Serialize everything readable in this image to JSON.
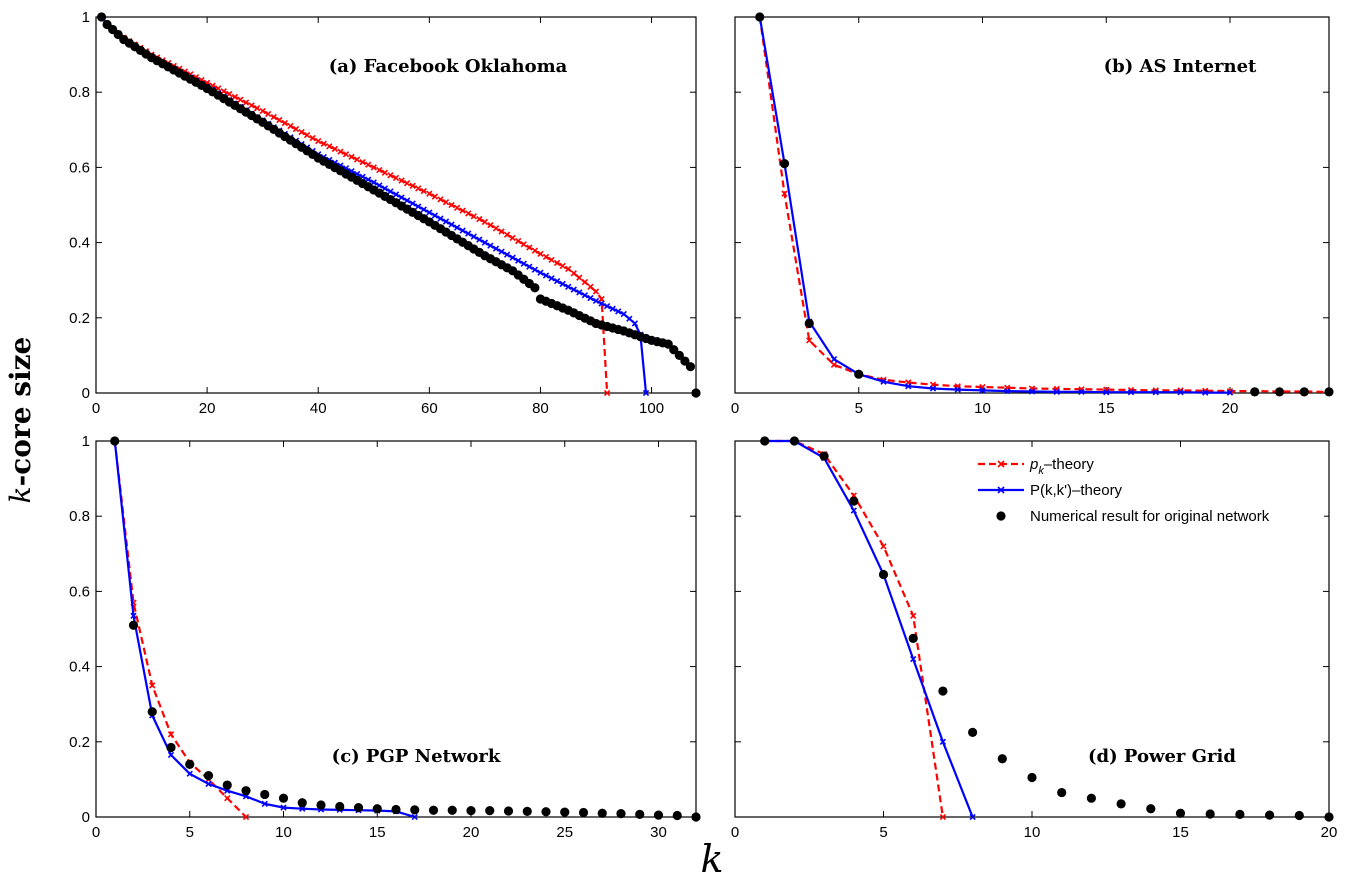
{
  "figure": {
    "ylabel_prefix": "k",
    "ylabel_suffix": "-core size",
    "xlabel": "k"
  },
  "legend": {
    "items": [
      {
        "name": "p_k-theory",
        "label_main": "p",
        "label_sub": "k",
        "label_rest": "–theory",
        "color": "#ff0000",
        "style": "dashed",
        "marker": "x"
      },
      {
        "name": "P(k,k')-theory",
        "label_main": "P(k,k')–theory",
        "color": "#0000ff",
        "style": "solid",
        "marker": "x"
      },
      {
        "name": "Numerical result for original network",
        "label_main": "Numerical result for original network",
        "color": "#000000",
        "style": "none",
        "marker": "dot"
      }
    ]
  },
  "colors": {
    "pk": "#ff0000",
    "pkk": "#0000ff",
    "num": "#000000"
  },
  "chart_data": [
    {
      "type": "line",
      "title": "(a) Facebook Oklahoma",
      "xlim": [
        0,
        108
      ],
      "ylim": [
        0,
        1
      ],
      "xticks": [
        "0",
        "20",
        "40",
        "60",
        "80",
        "100"
      ],
      "xtick_values": [
        0,
        20,
        40,
        60,
        80,
        100
      ],
      "yticks": [
        "0",
        "0.2",
        "0.4",
        "0.6",
        "0.8",
        "1"
      ],
      "ytick_values": [
        0,
        0.2,
        0.4,
        0.6,
        0.8,
        1
      ],
      "series": [
        {
          "name": "p_k-theory",
          "dense": true,
          "knots": [
            [
              1,
              1.0
            ],
            [
              2,
              0.98
            ],
            [
              5,
              0.945
            ],
            [
              10,
              0.9
            ],
            [
              20,
              0.825
            ],
            [
              30,
              0.75
            ],
            [
              40,
              0.67
            ],
            [
              50,
              0.6
            ],
            [
              60,
              0.53
            ],
            [
              70,
              0.455
            ],
            [
              80,
              0.37
            ],
            [
              85,
              0.33
            ],
            [
              88,
              0.295
            ],
            [
              90,
              0.27
            ],
            [
              91,
              0.25
            ],
            [
              92,
              0.0
            ]
          ],
          "x_end": 92
        },
        {
          "name": "P(k,k')-theory",
          "dense": true,
          "knots": [
            [
              1,
              1.0
            ],
            [
              2,
              0.98
            ],
            [
              5,
              0.94
            ],
            [
              10,
              0.895
            ],
            [
              20,
              0.815
            ],
            [
              30,
              0.725
            ],
            [
              40,
              0.635
            ],
            [
              50,
              0.56
            ],
            [
              60,
              0.48
            ],
            [
              70,
              0.4
            ],
            [
              80,
              0.32
            ],
            [
              90,
              0.245
            ],
            [
              95,
              0.21
            ],
            [
              97,
              0.185
            ],
            [
              98,
              0.155
            ],
            [
              99,
              0.0
            ]
          ],
          "x_end": 99
        },
        {
          "name": "Numerical result for original network",
          "dense": true,
          "knots": [
            [
              1,
              1.0
            ],
            [
              2,
              0.98
            ],
            [
              5,
              0.94
            ],
            [
              10,
              0.892
            ],
            [
              20,
              0.81
            ],
            [
              30,
              0.72
            ],
            [
              40,
              0.625
            ],
            [
              50,
              0.54
            ],
            [
              60,
              0.455
            ],
            [
              70,
              0.365
            ],
            [
              75,
              0.325
            ],
            [
              79,
              0.28
            ],
            [
              80,
              0.25
            ],
            [
              85,
              0.22
            ],
            [
              90,
              0.185
            ],
            [
              95,
              0.165
            ],
            [
              100,
              0.14
            ],
            [
              103,
              0.13
            ],
            [
              105,
              0.1
            ],
            [
              107,
              0.07
            ],
            [
              108,
              0.0
            ]
          ],
          "x_end": 108
        }
      ]
    },
    {
      "type": "line",
      "title": "(b) AS Internet",
      "xlim": [
        0,
        24
      ],
      "ylim": [
        0,
        1
      ],
      "xticks": [
        "0",
        "5",
        "10",
        "15",
        "20"
      ],
      "xtick_values": [
        0,
        5,
        10,
        15,
        20
      ],
      "yticks": [],
      "ytick_values": [
        0,
        0.2,
        0.4,
        0.6,
        0.8,
        1
      ],
      "series": [
        {
          "name": "p_k-theory",
          "x": [
            1,
            2,
            3,
            4,
            5,
            6,
            7,
            8,
            9,
            10,
            11,
            12,
            13,
            14,
            15,
            16,
            17,
            18,
            19,
            20,
            21,
            22,
            23,
            24
          ],
          "y": [
            1.0,
            0.53,
            0.14,
            0.075,
            0.05,
            0.035,
            0.028,
            0.022,
            0.018,
            0.016,
            0.014,
            0.012,
            0.011,
            0.01,
            0.009,
            0.008,
            0.007,
            0.007,
            0.006,
            0.005,
            0.005,
            0.004,
            0.004,
            0.003
          ]
        },
        {
          "name": "P(k,k')-theory",
          "x": [
            1,
            2,
            3,
            4,
            5,
            6,
            7,
            8,
            9,
            10,
            11,
            12,
            13,
            14,
            15,
            16,
            17,
            18,
            19,
            20
          ],
          "y": [
            1.0,
            0.61,
            0.19,
            0.09,
            0.05,
            0.03,
            0.018,
            0.012,
            0.009,
            0.007,
            0.005,
            0.004,
            0.003,
            0.003,
            0.002,
            0.002,
            0.002,
            0.002,
            0.001,
            0.001
          ]
        },
        {
          "name": "Numerical result for original network",
          "x": [
            1,
            2,
            3,
            5,
            21,
            22,
            23,
            24
          ],
          "y": [
            1.0,
            0.61,
            0.185,
            0.05,
            0.003,
            0.003,
            0.003,
            0.003
          ]
        }
      ]
    },
    {
      "type": "line",
      "title": "(c) PGP Network",
      "xlim": [
        0,
        32
      ],
      "ylim": [
        0,
        1
      ],
      "xticks": [
        "0",
        "5",
        "10",
        "15",
        "20",
        "25",
        "30"
      ],
      "xtick_values": [
        0,
        5,
        10,
        15,
        20,
        25,
        30
      ],
      "yticks": [
        "0",
        "0.2",
        "0.4",
        "0.6",
        "0.8",
        "1"
      ],
      "ytick_values": [
        0,
        0.2,
        0.4,
        0.6,
        0.8,
        1
      ],
      "series": [
        {
          "name": "p_k-theory",
          "x": [
            1,
            2,
            3,
            4,
            5,
            6,
            7,
            8
          ],
          "y": [
            1.0,
            0.57,
            0.35,
            0.22,
            0.145,
            0.1,
            0.05,
            0.0
          ]
        },
        {
          "name": "P(k,k')-theory",
          "x": [
            1,
            2,
            3,
            4,
            5,
            6,
            7,
            8,
            9,
            10,
            11,
            12,
            13,
            14,
            15,
            16,
            17
          ],
          "y": [
            1.0,
            0.535,
            0.27,
            0.165,
            0.115,
            0.088,
            0.07,
            0.055,
            0.035,
            0.025,
            0.022,
            0.02,
            0.019,
            0.018,
            0.017,
            0.015,
            0.0
          ]
        },
        {
          "name": "Numerical result for original network",
          "x": [
            1,
            2,
            3,
            4,
            5,
            6,
            7,
            8,
            9,
            10,
            11,
            12,
            13,
            14,
            15,
            16,
            17,
            18,
            19,
            20,
            21,
            22,
            23,
            24,
            25,
            26,
            27,
            28,
            29,
            30,
            31,
            32
          ],
          "y": [
            1.0,
            0.51,
            0.28,
            0.185,
            0.14,
            0.11,
            0.085,
            0.07,
            0.06,
            0.05,
            0.038,
            0.032,
            0.028,
            0.025,
            0.022,
            0.02,
            0.019,
            0.018,
            0.018,
            0.017,
            0.017,
            0.016,
            0.015,
            0.014,
            0.013,
            0.012,
            0.01,
            0.009,
            0.007,
            0.005,
            0.004,
            0.0
          ]
        }
      ]
    },
    {
      "type": "line",
      "title": "(d) Power Grid",
      "xlim": [
        0,
        20
      ],
      "ylim": [
        0,
        1
      ],
      "xticks": [
        "0",
        "5",
        "10",
        "15",
        "20"
      ],
      "xtick_values": [
        0,
        5,
        10,
        15,
        20
      ],
      "yticks": [],
      "ytick_values": [
        0,
        0.2,
        0.4,
        0.6,
        0.8,
        1
      ],
      "series": [
        {
          "name": "p_k-theory",
          "x": [
            1,
            2,
            3,
            4,
            5,
            6,
            7
          ],
          "y": [
            1.0,
            1.0,
            0.965,
            0.855,
            0.72,
            0.535,
            0.0
          ]
        },
        {
          "name": "P(k,k')-theory",
          "x": [
            1,
            2,
            3,
            4,
            5,
            6,
            7,
            8
          ],
          "y": [
            1.0,
            1.0,
            0.955,
            0.815,
            0.645,
            0.42,
            0.2,
            0.0
          ]
        },
        {
          "name": "Numerical result for original network",
          "x": [
            1,
            2,
            3,
            4,
            5,
            6,
            7,
            8,
            9,
            10,
            11,
            12,
            13,
            14,
            15,
            16,
            17,
            18,
            19,
            20
          ],
          "y": [
            1.0,
            1.0,
            0.96,
            0.84,
            0.645,
            0.475,
            0.335,
            0.225,
            0.155,
            0.105,
            0.065,
            0.05,
            0.035,
            0.022,
            0.01,
            0.008,
            0.007,
            0.005,
            0.004,
            0.0
          ]
        }
      ]
    }
  ]
}
